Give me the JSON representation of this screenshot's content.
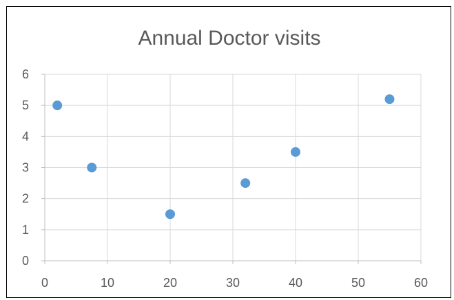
{
  "chart_data": {
    "type": "scatter",
    "title": "Annual Doctor visits",
    "xlabel": "",
    "ylabel": "",
    "xlim": [
      0,
      60
    ],
    "ylim": [
      0,
      6
    ],
    "x_ticks": [
      0,
      10,
      20,
      30,
      40,
      50,
      60
    ],
    "y_ticks": [
      0,
      1,
      2,
      3,
      4,
      5,
      6
    ],
    "grid": true,
    "legend": "none",
    "series": [
      {
        "color": "#5b9bd5",
        "points": [
          {
            "x": 2,
            "y": 5
          },
          {
            "x": 7.5,
            "y": 3
          },
          {
            "x": 20,
            "y": 1.5
          },
          {
            "x": 32,
            "y": 2.5
          },
          {
            "x": 40,
            "y": 3.5
          },
          {
            "x": 55,
            "y": 5.2
          }
        ]
      }
    ],
    "colors": {
      "gridline": "#d9d9d9",
      "axis": "#bfbfbf",
      "text": "#595959"
    }
  }
}
